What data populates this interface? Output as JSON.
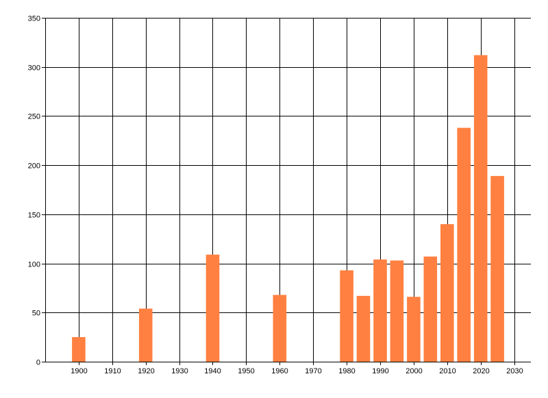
{
  "chart_data": {
    "type": "bar",
    "title": "",
    "xlabel": "",
    "ylabel": "",
    "x": [
      1900,
      1920,
      1940,
      1960,
      1980,
      1985,
      1990,
      1995,
      2000,
      2005,
      2010,
      2015,
      2020,
      2025
    ],
    "values": [
      25,
      54,
      109,
      68,
      93,
      67,
      104,
      103,
      66,
      107,
      140,
      238,
      312,
      189
    ],
    "xlim": [
      1890,
      2035
    ],
    "ylim": [
      0,
      350
    ],
    "xticks": [
      1900,
      1910,
      1920,
      1930,
      1940,
      1950,
      1960,
      1970,
      1980,
      1990,
      2000,
      2010,
      2020,
      2030
    ],
    "yticks": [
      0,
      50,
      100,
      150,
      200,
      250,
      300,
      350
    ],
    "grid": true,
    "bar_color": "#ff8040",
    "grid_color": "#000000"
  }
}
